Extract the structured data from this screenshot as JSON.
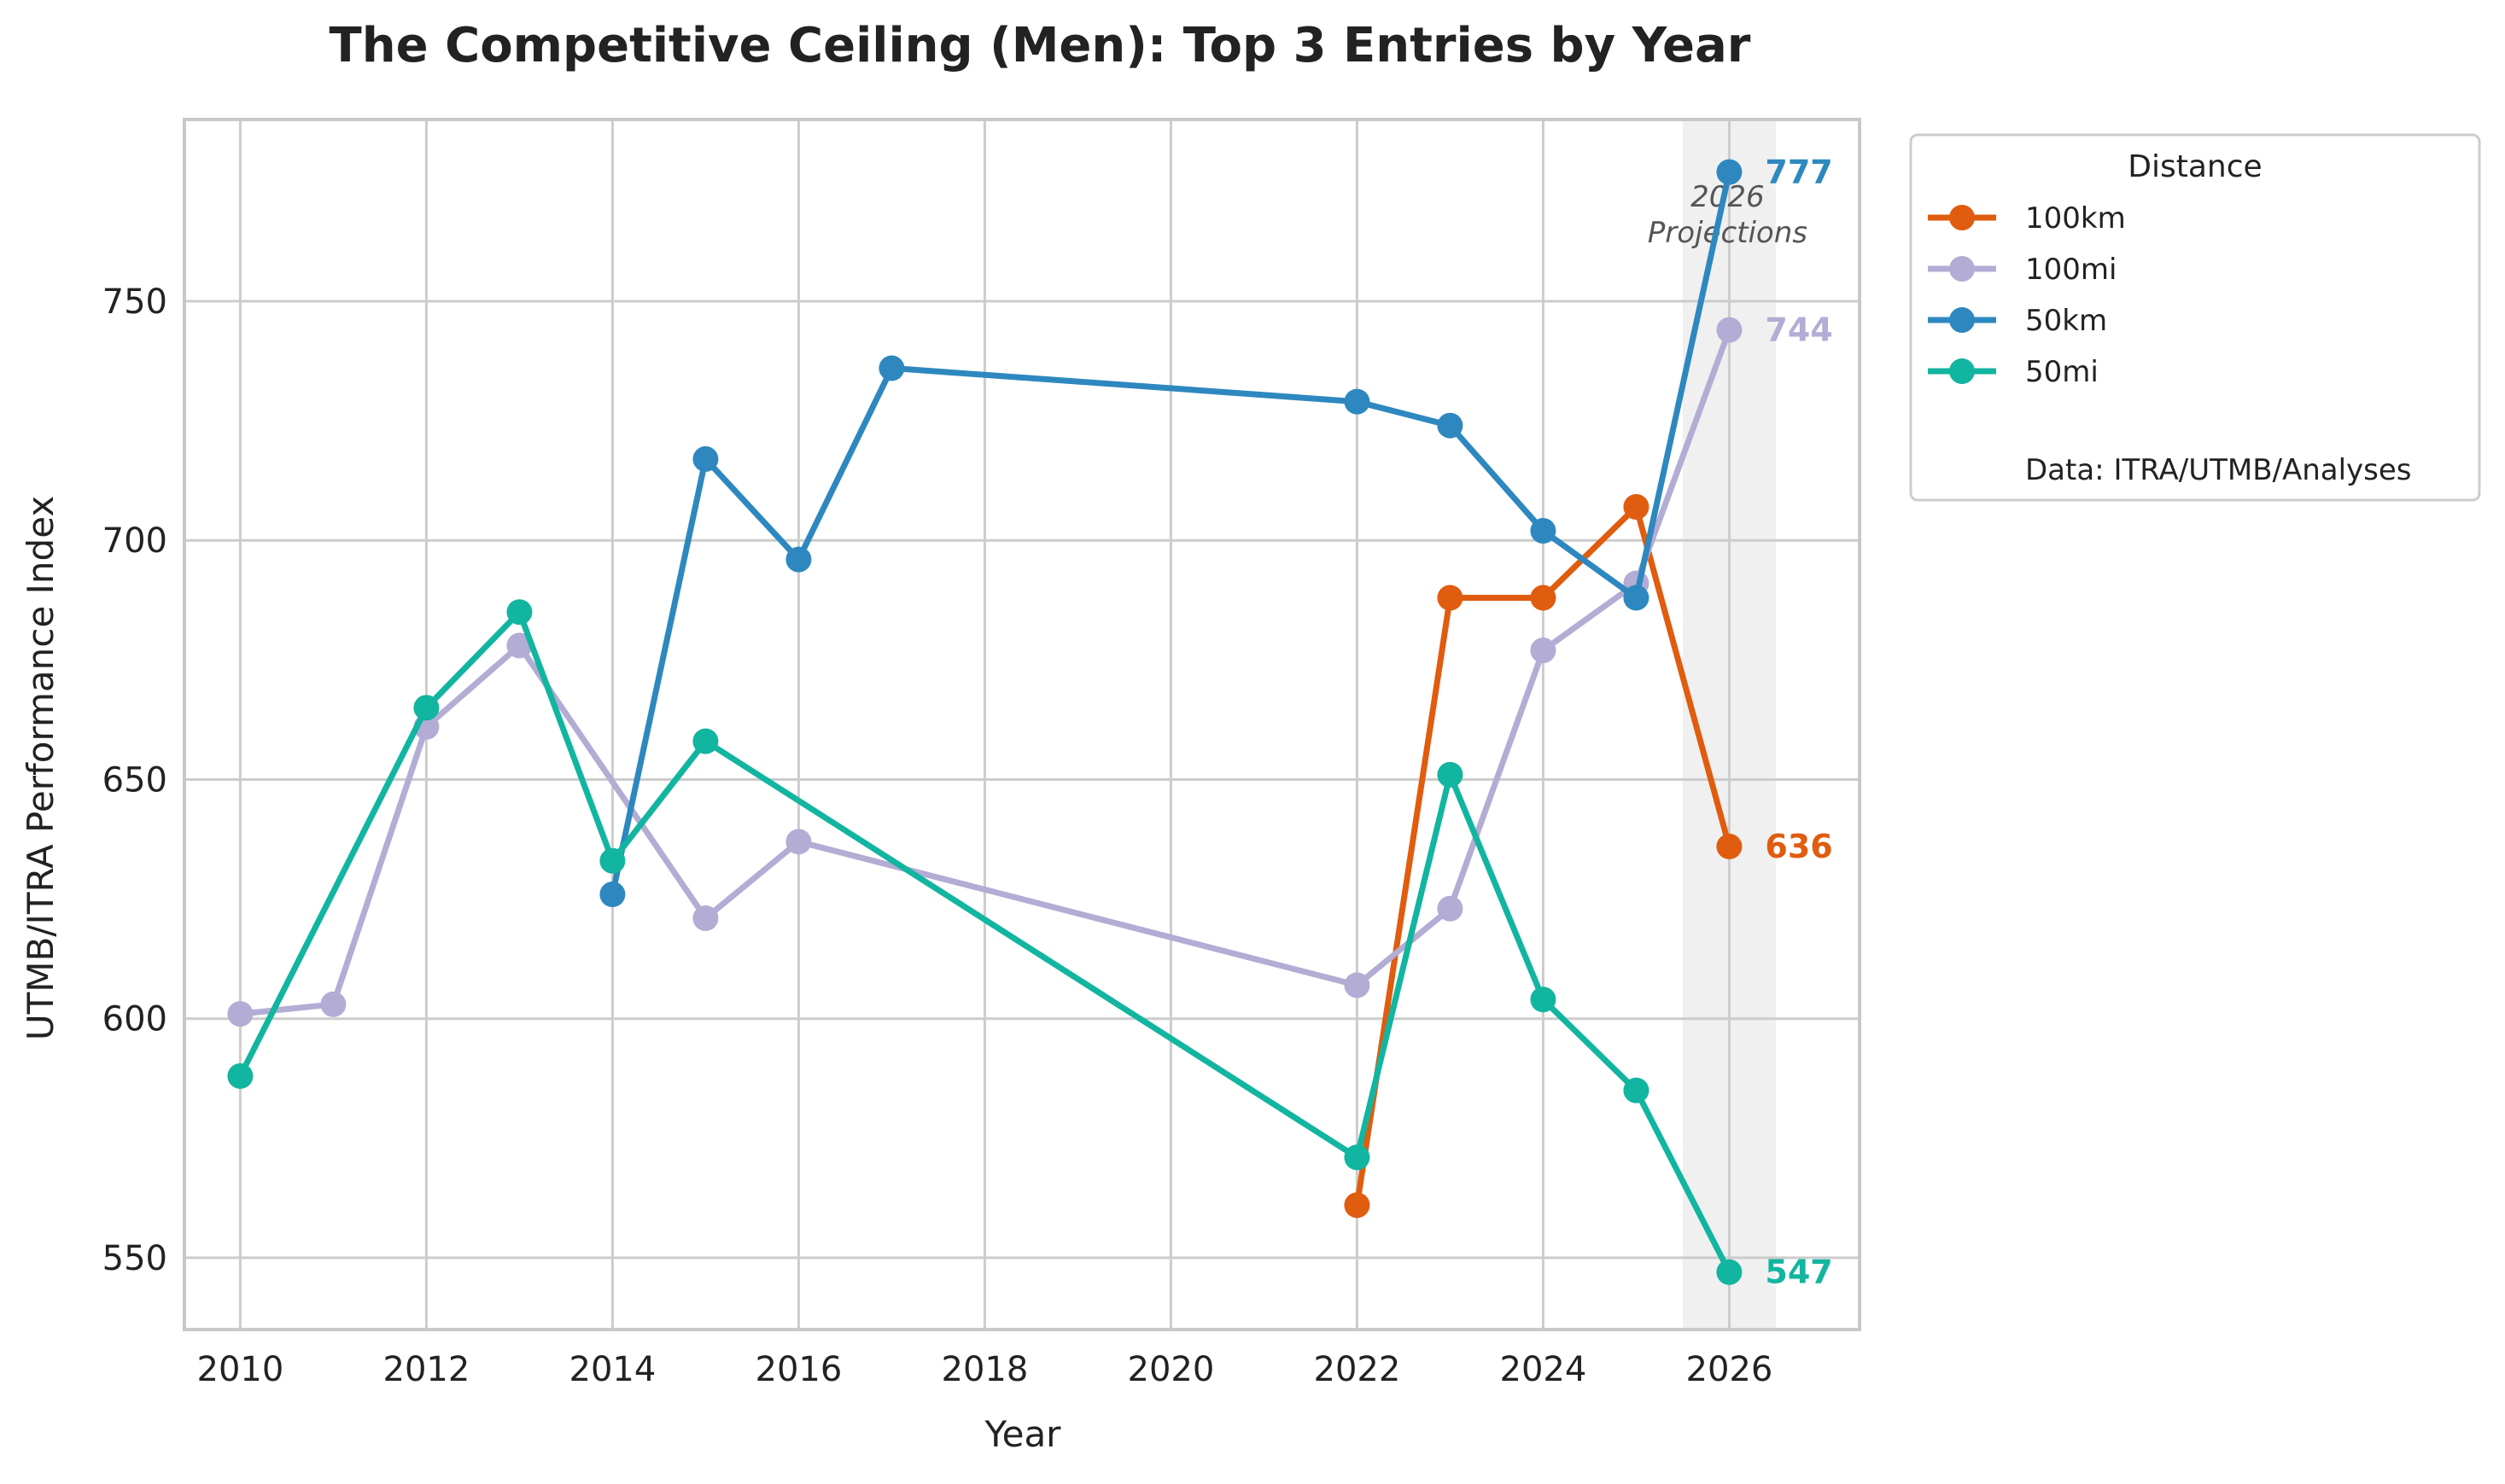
{
  "chart_data": {
    "type": "line",
    "title": "The Competitive Ceiling (Men): Top 3 Entries by Year",
    "xlabel": "Year",
    "ylabel": "UTMB/ITRA Performance Index",
    "xlim": [
      2009.4,
      2027.4
    ],
    "ylim": [
      535,
      788
    ],
    "x_ticks": [
      2010,
      2012,
      2014,
      2016,
      2018,
      2020,
      2022,
      2024,
      2026
    ],
    "y_ticks": [
      550,
      600,
      650,
      700,
      750
    ],
    "grid": true,
    "legend": {
      "title": "Distance",
      "placement": "outside-right",
      "note": "Data: ITRA/UTMB/Analyses"
    },
    "projection_band": {
      "x_range": [
        2025.5,
        2026.5
      ],
      "label_line1": "2026",
      "label_line2": "Projections"
    },
    "series": [
      {
        "name": "100km",
        "color": "#e05c0e",
        "x": [
          2022,
          2023,
          2024,
          2025,
          2026
        ],
        "y": [
          561,
          688,
          688,
          707,
          636
        ],
        "end_label": "636"
      },
      {
        "name": "100mi",
        "color": "#b3acd4",
        "x": [
          2010,
          2011,
          2012,
          2013,
          2015,
          2016,
          2022,
          2023,
          2024,
          2025,
          2026
        ],
        "y": [
          601,
          603,
          661,
          678,
          621,
          637,
          607,
          623,
          677,
          691,
          744
        ],
        "end_label": "744"
      },
      {
        "name": "50km",
        "color": "#2e88bf",
        "x": [
          2014,
          2015,
          2016,
          2017,
          2022,
          2023,
          2024,
          2025,
          2026
        ],
        "y": [
          626,
          717,
          696,
          736,
          729,
          724,
          702,
          688,
          777
        ],
        "end_label": "777"
      },
      {
        "name": "50mi",
        "color": "#12b5a0",
        "x": [
          2010,
          2012,
          2013,
          2014,
          2015,
          2022,
          2023,
          2024,
          2025,
          2026
        ],
        "y": [
          588,
          665,
          685,
          633,
          658,
          571,
          651,
          604,
          585,
          547
        ],
        "end_label": "547"
      }
    ]
  }
}
